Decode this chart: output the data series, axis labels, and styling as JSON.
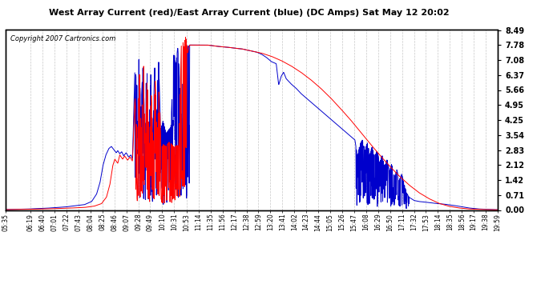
{
  "title": "West Array Current (red)/East Array Current (blue) (DC Amps) Sat May 12 20:02",
  "copyright": "Copyright 2007 Cartronics.com",
  "background_color": "#ffffff",
  "plot_background": "#ffffff",
  "grid_color": "#c8c8c8",
  "red_color": "#ff0000",
  "blue_color": "#0000cc",
  "ylim": [
    0.0,
    8.49
  ],
  "yticks": [
    0.0,
    0.71,
    1.42,
    2.12,
    2.83,
    3.54,
    4.25,
    4.95,
    5.66,
    6.37,
    7.08,
    7.78,
    8.49
  ],
  "x_labels": [
    "05:35",
    "06:19",
    "06:40",
    "07:01",
    "07:22",
    "07:43",
    "08:04",
    "08:25",
    "08:46",
    "09:07",
    "09:28",
    "09:49",
    "10:10",
    "10:31",
    "10:53",
    "11:14",
    "11:35",
    "11:56",
    "12:17",
    "12:38",
    "12:59",
    "13:20",
    "13:41",
    "14:02",
    "14:23",
    "14:44",
    "15:05",
    "15:26",
    "15:47",
    "16:08",
    "16:29",
    "16:50",
    "17:11",
    "17:32",
    "17:53",
    "18:14",
    "18:35",
    "18:56",
    "19:17",
    "19:38",
    "19:59"
  ],
  "red_points": [
    [
      0.0,
      0.02
    ],
    [
      0.04,
      0.03
    ],
    [
      0.08,
      0.05
    ],
    [
      0.12,
      0.08
    ],
    [
      0.16,
      0.12
    ],
    [
      0.18,
      0.18
    ],
    [
      0.195,
      0.3
    ],
    [
      0.205,
      0.6
    ],
    [
      0.212,
      1.2
    ],
    [
      0.218,
      2.1
    ],
    [
      0.222,
      2.4
    ],
    [
      0.228,
      2.2
    ],
    [
      0.232,
      2.6
    ],
    [
      0.238,
      2.4
    ],
    [
      0.242,
      2.55
    ],
    [
      0.248,
      2.35
    ],
    [
      0.253,
      2.5
    ],
    [
      0.258,
      2.3
    ],
    [
      0.263,
      5.3
    ],
    [
      0.268,
      2.9
    ],
    [
      0.272,
      6.5
    ],
    [
      0.276,
      3.2
    ],
    [
      0.28,
      7.5
    ],
    [
      0.284,
      3.0
    ],
    [
      0.288,
      6.8
    ],
    [
      0.292,
      2.8
    ],
    [
      0.296,
      5.5
    ],
    [
      0.3,
      2.7
    ],
    [
      0.304,
      6.2
    ],
    [
      0.308,
      3.1
    ],
    [
      0.312,
      5.8
    ],
    [
      0.316,
      2.9
    ],
    [
      0.32,
      3.1
    ],
    [
      0.326,
      3.0
    ],
    [
      0.332,
      3.2
    ],
    [
      0.338,
      3.1
    ],
    [
      0.342,
      2.95
    ],
    [
      0.348,
      3.05
    ],
    [
      0.352,
      3.0
    ],
    [
      0.358,
      8.49
    ],
    [
      0.362,
      7.6
    ],
    [
      0.366,
      8.2
    ],
    [
      0.37,
      7.4
    ],
    [
      0.374,
      7.78
    ],
    [
      0.38,
      7.78
    ],
    [
      0.39,
      7.78
    ],
    [
      0.4,
      7.78
    ],
    [
      0.41,
      7.78
    ],
    [
      0.42,
      7.75
    ],
    [
      0.43,
      7.72
    ],
    [
      0.44,
      7.7
    ],
    [
      0.45,
      7.68
    ],
    [
      0.46,
      7.65
    ],
    [
      0.47,
      7.62
    ],
    [
      0.48,
      7.6
    ],
    [
      0.49,
      7.55
    ],
    [
      0.5,
      7.5
    ],
    [
      0.52,
      7.4
    ],
    [
      0.54,
      7.25
    ],
    [
      0.56,
      7.05
    ],
    [
      0.58,
      6.8
    ],
    [
      0.6,
      6.5
    ],
    [
      0.62,
      6.15
    ],
    [
      0.64,
      5.75
    ],
    [
      0.66,
      5.3
    ],
    [
      0.68,
      4.8
    ],
    [
      0.7,
      4.28
    ],
    [
      0.72,
      3.72
    ],
    [
      0.74,
      3.15
    ],
    [
      0.76,
      2.6
    ],
    [
      0.78,
      2.08
    ],
    [
      0.8,
      1.6
    ],
    [
      0.82,
      1.18
    ],
    [
      0.84,
      0.82
    ],
    [
      0.86,
      0.54
    ],
    [
      0.88,
      0.32
    ],
    [
      0.9,
      0.18
    ],
    [
      0.92,
      0.1
    ],
    [
      0.94,
      0.05
    ],
    [
      0.96,
      0.03
    ],
    [
      1.0,
      0.01
    ]
  ],
  "blue_points": [
    [
      0.0,
      0.02
    ],
    [
      0.04,
      0.04
    ],
    [
      0.08,
      0.08
    ],
    [
      0.12,
      0.14
    ],
    [
      0.16,
      0.25
    ],
    [
      0.175,
      0.4
    ],
    [
      0.185,
      0.75
    ],
    [
      0.192,
      1.3
    ],
    [
      0.198,
      2.1
    ],
    [
      0.204,
      2.6
    ],
    [
      0.21,
      2.9
    ],
    [
      0.215,
      3.0
    ],
    [
      0.22,
      2.85
    ],
    [
      0.225,
      2.7
    ],
    [
      0.228,
      2.8
    ],
    [
      0.232,
      2.65
    ],
    [
      0.236,
      2.75
    ],
    [
      0.24,
      2.55
    ],
    [
      0.245,
      2.7
    ],
    [
      0.25,
      2.5
    ],
    [
      0.255,
      2.6
    ],
    [
      0.258,
      2.4
    ],
    [
      0.263,
      6.8
    ],
    [
      0.267,
      5.8
    ],
    [
      0.271,
      7.2
    ],
    [
      0.275,
      4.5
    ],
    [
      0.279,
      6.8
    ],
    [
      0.283,
      4.0
    ],
    [
      0.287,
      7.0
    ],
    [
      0.291,
      3.5
    ],
    [
      0.295,
      6.5
    ],
    [
      0.299,
      3.2
    ],
    [
      0.303,
      6.8
    ],
    [
      0.307,
      4.2
    ],
    [
      0.311,
      7.1
    ],
    [
      0.315,
      3.8
    ],
    [
      0.32,
      4.2
    ],
    [
      0.326,
      3.6
    ],
    [
      0.332,
      3.8
    ],
    [
      0.336,
      3.9
    ],
    [
      0.342,
      7.5
    ],
    [
      0.346,
      6.8
    ],
    [
      0.35,
      7.7
    ],
    [
      0.354,
      5.8
    ],
    [
      0.358,
      4.2
    ],
    [
      0.362,
      7.4
    ],
    [
      0.366,
      7.6
    ],
    [
      0.37,
      7.72
    ],
    [
      0.374,
      7.78
    ],
    [
      0.38,
      7.78
    ],
    [
      0.39,
      7.78
    ],
    [
      0.4,
      7.78
    ],
    [
      0.41,
      7.78
    ],
    [
      0.42,
      7.75
    ],
    [
      0.43,
      7.72
    ],
    [
      0.44,
      7.7
    ],
    [
      0.45,
      7.68
    ],
    [
      0.46,
      7.65
    ],
    [
      0.47,
      7.62
    ],
    [
      0.48,
      7.6
    ],
    [
      0.49,
      7.55
    ],
    [
      0.5,
      7.5
    ],
    [
      0.51,
      7.45
    ],
    [
      0.52,
      7.35
    ],
    [
      0.53,
      7.2
    ],
    [
      0.54,
      7.0
    ],
    [
      0.55,
      6.9
    ],
    [
      0.555,
      5.9
    ],
    [
      0.56,
      6.3
    ],
    [
      0.565,
      6.5
    ],
    [
      0.57,
      6.2
    ],
    [
      0.58,
      5.95
    ],
    [
      0.59,
      5.75
    ],
    [
      0.6,
      5.5
    ],
    [
      0.62,
      5.1
    ],
    [
      0.64,
      4.7
    ],
    [
      0.66,
      4.3
    ],
    [
      0.68,
      3.9
    ],
    [
      0.7,
      3.5
    ],
    [
      0.71,
      3.3
    ],
    [
      0.715,
      2.5
    ],
    [
      0.72,
      3.1
    ],
    [
      0.725,
      3.3
    ],
    [
      0.73,
      2.8
    ],
    [
      0.735,
      3.2
    ],
    [
      0.74,
      2.6
    ],
    [
      0.745,
      3.0
    ],
    [
      0.75,
      2.5
    ],
    [
      0.755,
      2.8
    ],
    [
      0.76,
      2.2
    ],
    [
      0.765,
      2.6
    ],
    [
      0.77,
      2.0
    ],
    [
      0.775,
      2.4
    ],
    [
      0.78,
      1.8
    ],
    [
      0.785,
      2.2
    ],
    [
      0.79,
      1.5
    ],
    [
      0.795,
      1.9
    ],
    [
      0.8,
      1.4
    ],
    [
      0.805,
      1.7
    ],
    [
      0.81,
      1.2
    ],
    [
      0.815,
      0.8
    ],
    [
      0.82,
      0.6
    ],
    [
      0.83,
      0.45
    ],
    [
      0.84,
      0.4
    ],
    [
      0.85,
      0.38
    ],
    [
      0.86,
      0.35
    ],
    [
      0.87,
      0.32
    ],
    [
      0.88,
      0.3
    ],
    [
      0.89,
      0.28
    ],
    [
      0.9,
      0.25
    ],
    [
      0.91,
      0.22
    ],
    [
      0.92,
      0.18
    ],
    [
      0.93,
      0.14
    ],
    [
      0.94,
      0.1
    ],
    [
      0.96,
      0.05
    ],
    [
      1.0,
      0.01
    ]
  ]
}
